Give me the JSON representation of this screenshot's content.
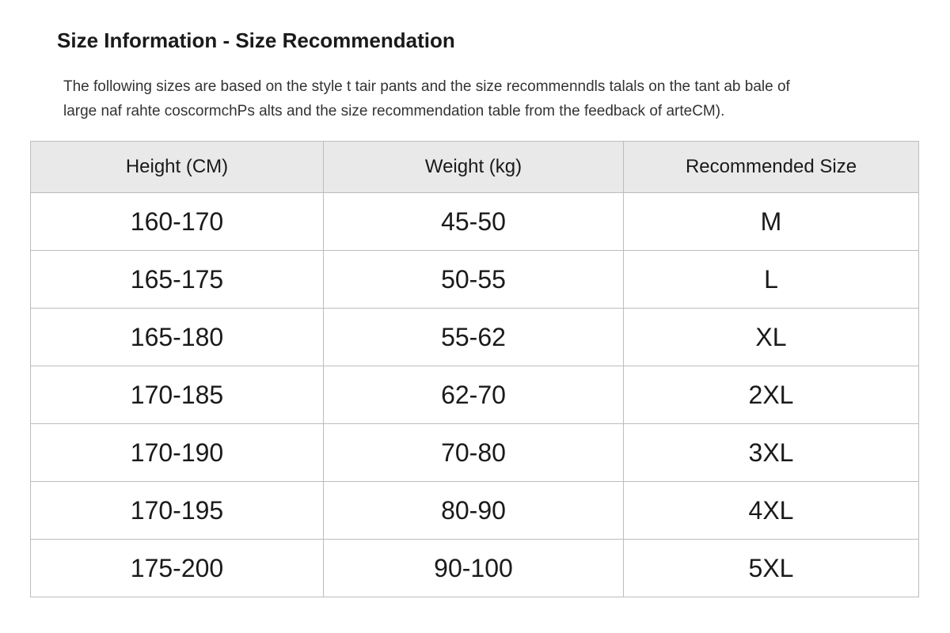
{
  "header": {
    "title": "Size Information - Size Recommendation"
  },
  "intro": {
    "lines": [
      "The following sizes are based on the style t tair pants and the size recommenndls talals on the tant ab bale of",
      "large naf rahte coscormchPs alts and the size recommendation table from the feedback of arteCM)."
    ]
  },
  "table": {
    "columns": [
      "Height (CM)",
      "Weight (kg)",
      "Recommended Size"
    ],
    "rows": [
      [
        "160-170",
        "45-50",
        "M"
      ],
      [
        "165-175",
        "50-55",
        "L"
      ],
      [
        "165-180",
        "55-62",
        "XL"
      ],
      [
        "170-185",
        "62-70",
        "2XL"
      ],
      [
        "170-190",
        "70-80",
        "3XL"
      ],
      [
        "170-195",
        "80-90",
        "4XL"
      ],
      [
        "175-200",
        "90-100",
        "5XL"
      ]
    ]
  }
}
